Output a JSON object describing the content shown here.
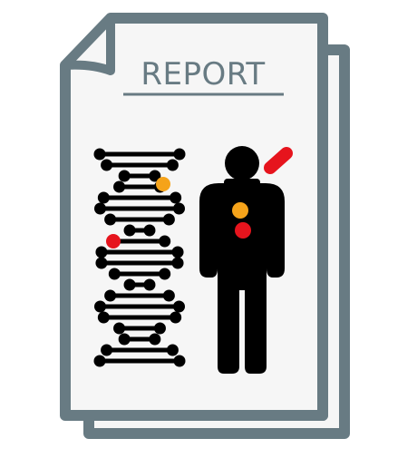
{
  "report": {
    "title": "REPORT"
  },
  "colors": {
    "frame": "#687b83",
    "paper": "#f6f6f6",
    "figure": "#000000",
    "marker_orange": "#f5a31a",
    "marker_red": "#e6141d"
  },
  "icons": {
    "document": "report-document-icon",
    "dna": "dna-helix-icon",
    "person": "human-figure-icon",
    "pill": "capsule-icon"
  }
}
